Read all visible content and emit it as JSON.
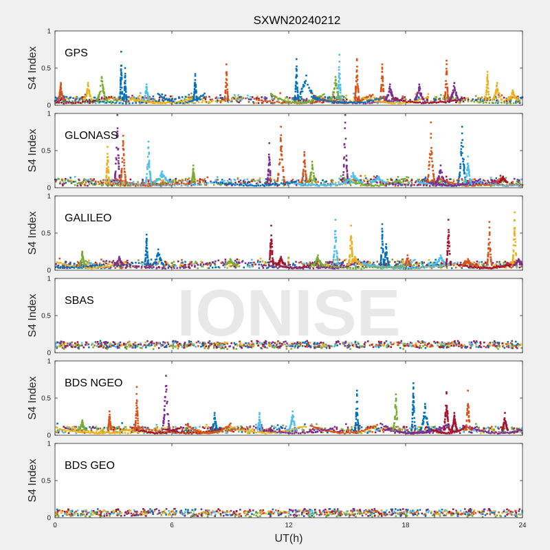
{
  "chart_data": {
    "type": "scatter",
    "title": "SXWN20240212",
    "xlabel": "UT(h)",
    "ylabel": "S4 Index",
    "xlim": [
      0,
      24
    ],
    "ylim": [
      0,
      1
    ],
    "xticks": [
      0,
      6,
      12,
      18,
      24
    ],
    "xtick_labels": [
      "0",
      "6",
      "12",
      "18",
      "24"
    ],
    "yticks": [
      0,
      0.5,
      1
    ],
    "ytick_labels": [
      "0",
      "0.5",
      "1"
    ],
    "grid": false,
    "watermark": "IONISE",
    "series_colors": [
      "#0072BD",
      "#D95319",
      "#EDB120",
      "#7E2F8E",
      "#77AC30",
      "#4DBEEE",
      "#A2142F"
    ],
    "panels": [
      {
        "label": "GPS",
        "baseline": 0.07,
        "spikes": [
          {
            "x": 0.3,
            "peak": 0.3,
            "width": 0.3,
            "color": 1
          },
          {
            "x": 1.7,
            "peak": 0.3,
            "width": 0.4,
            "color": 2
          },
          {
            "x": 2.4,
            "peak": 0.38,
            "width": 0.5,
            "color": 4
          },
          {
            "x": 3.4,
            "peak": 0.72,
            "width": 0.15,
            "color": 0
          },
          {
            "x": 3.6,
            "peak": 0.5,
            "width": 0.15,
            "color": 0
          },
          {
            "x": 4.7,
            "peak": 0.28,
            "width": 0.3,
            "color": 5
          },
          {
            "x": 7.2,
            "peak": 0.42,
            "width": 0.2,
            "color": 0
          },
          {
            "x": 8.8,
            "peak": 0.55,
            "width": 0.2,
            "color": 1
          },
          {
            "x": 12.4,
            "peak": 0.62,
            "width": 0.2,
            "color": 0
          },
          {
            "x": 12.9,
            "peak": 0.4,
            "width": 1.2,
            "color": 0
          },
          {
            "x": 14.6,
            "peak": 0.68,
            "width": 0.2,
            "color": 5
          },
          {
            "x": 14.4,
            "peak": 0.38,
            "width": 0.5,
            "color": 4
          },
          {
            "x": 15.5,
            "peak": 0.62,
            "width": 0.25,
            "color": 1
          },
          {
            "x": 16.8,
            "peak": 0.55,
            "width": 0.25,
            "color": 1
          },
          {
            "x": 17.2,
            "peak": 0.28,
            "width": 0.5,
            "color": 3
          },
          {
            "x": 18.7,
            "peak": 0.28,
            "width": 0.5,
            "color": 3
          },
          {
            "x": 20.1,
            "peak": 0.6,
            "width": 0.2,
            "color": 1
          },
          {
            "x": 20.5,
            "peak": 0.3,
            "width": 0.5,
            "color": 3
          },
          {
            "x": 22.2,
            "peak": 0.45,
            "width": 0.2,
            "color": 2
          },
          {
            "x": 22.7,
            "peak": 0.3,
            "width": 0.5,
            "color": 2
          },
          {
            "x": 23.5,
            "peak": 0.2,
            "width": 0.5,
            "color": 2
          }
        ]
      },
      {
        "label": "GLONASS",
        "baseline": 0.07,
        "spikes": [
          {
            "x": 2.7,
            "peak": 0.55,
            "width": 0.2,
            "color": 2
          },
          {
            "x": 3.2,
            "peak": 0.98,
            "width": 0.3,
            "color": 3
          },
          {
            "x": 3.5,
            "peak": 0.7,
            "width": 0.3,
            "color": 1
          },
          {
            "x": 4.8,
            "peak": 0.62,
            "width": 0.3,
            "color": 5
          },
          {
            "x": 5.5,
            "peak": 0.22,
            "width": 0.9,
            "color": 5
          },
          {
            "x": 7.1,
            "peak": 0.3,
            "width": 0.2,
            "color": 4
          },
          {
            "x": 11.0,
            "peak": 0.6,
            "width": 0.2,
            "color": 3
          },
          {
            "x": 11.6,
            "peak": 0.82,
            "width": 0.4,
            "color": 1
          },
          {
            "x": 12.8,
            "peak": 0.48,
            "width": 0.3,
            "color": 1
          },
          {
            "x": 13.2,
            "peak": 0.35,
            "width": 0.4,
            "color": 4
          },
          {
            "x": 14.9,
            "peak": 0.98,
            "width": 0.3,
            "color": 3
          },
          {
            "x": 15.3,
            "peak": 0.2,
            "width": 1.0,
            "color": 5
          },
          {
            "x": 16.6,
            "peak": 0.15,
            "width": 0.8,
            "color": 5
          },
          {
            "x": 19.3,
            "peak": 0.88,
            "width": 0.4,
            "color": 1
          },
          {
            "x": 19.8,
            "peak": 0.3,
            "width": 0.5,
            "color": 3
          },
          {
            "x": 20.9,
            "peak": 0.82,
            "width": 0.4,
            "color": 0
          },
          {
            "x": 21.2,
            "peak": 0.42,
            "width": 0.3,
            "color": 5
          },
          {
            "x": 23.0,
            "peak": 0.15,
            "width": 0.5,
            "color": 6
          }
        ]
      },
      {
        "label": "GALILEO",
        "baseline": 0.07,
        "spikes": [
          {
            "x": 1.4,
            "peak": 0.25,
            "width": 0.3,
            "color": 4
          },
          {
            "x": 3.3,
            "peak": 0.18,
            "width": 0.5,
            "color": 3
          },
          {
            "x": 4.7,
            "peak": 0.48,
            "width": 0.2,
            "color": 0
          },
          {
            "x": 5.3,
            "peak": 0.28,
            "width": 0.6,
            "color": 0
          },
          {
            "x": 9.0,
            "peak": 0.15,
            "width": 0.6,
            "color": 4
          },
          {
            "x": 11.1,
            "peak": 0.6,
            "width": 0.25,
            "color": 6
          },
          {
            "x": 11.6,
            "peak": 0.18,
            "width": 0.5,
            "color": 6
          },
          {
            "x": 13.5,
            "peak": 0.2,
            "width": 0.5,
            "color": 4
          },
          {
            "x": 14.4,
            "peak": 0.68,
            "width": 0.3,
            "color": 5
          },
          {
            "x": 15.2,
            "peak": 0.6,
            "width": 0.25,
            "color": 2
          },
          {
            "x": 15.4,
            "peak": 0.18,
            "width": 0.8,
            "color": 2
          },
          {
            "x": 16.8,
            "peak": 0.62,
            "width": 0.2,
            "color": 0
          },
          {
            "x": 17.0,
            "peak": 0.35,
            "width": 0.3,
            "color": 0
          },
          {
            "x": 18.1,
            "peak": 0.2,
            "width": 0.3,
            "color": 1
          },
          {
            "x": 19.8,
            "peak": 0.2,
            "width": 0.8,
            "color": 5
          },
          {
            "x": 20.2,
            "peak": 0.68,
            "width": 0.25,
            "color": 6
          },
          {
            "x": 21.2,
            "peak": 0.15,
            "width": 0.6,
            "color": 1
          },
          {
            "x": 22.3,
            "peak": 0.65,
            "width": 0.25,
            "color": 1
          },
          {
            "x": 23.6,
            "peak": 0.78,
            "width": 0.25,
            "color": 2
          },
          {
            "x": 23.8,
            "peak": 0.15,
            "width": 0.5,
            "color": 3
          }
        ]
      },
      {
        "label": "SBAS",
        "baseline": 0.11,
        "spikes": []
      },
      {
        "label": "BDS NGEO",
        "baseline": 0.07,
        "spikes": [
          {
            "x": 1.4,
            "peak": 0.2,
            "width": 0.4,
            "color": 4
          },
          {
            "x": 2.8,
            "peak": 0.32,
            "width": 0.2,
            "color": 1
          },
          {
            "x": 4.2,
            "peak": 0.65,
            "width": 0.2,
            "color": 1
          },
          {
            "x": 5.7,
            "peak": 0.8,
            "width": 0.4,
            "color": 3
          },
          {
            "x": 8.2,
            "peak": 0.3,
            "width": 0.3,
            "color": 0
          },
          {
            "x": 10.5,
            "peak": 0.3,
            "width": 0.2,
            "color": 5
          },
          {
            "x": 12.2,
            "peak": 0.32,
            "width": 0.4,
            "color": 5
          },
          {
            "x": 15.5,
            "peak": 0.6,
            "width": 0.2,
            "color": 0
          },
          {
            "x": 17.5,
            "peak": 0.55,
            "width": 0.3,
            "color": 4
          },
          {
            "x": 18.4,
            "peak": 0.7,
            "width": 0.2,
            "color": 0
          },
          {
            "x": 19.0,
            "peak": 0.42,
            "width": 0.5,
            "color": 0
          },
          {
            "x": 20.1,
            "peak": 0.58,
            "width": 0.3,
            "color": 6
          },
          {
            "x": 20.5,
            "peak": 0.3,
            "width": 0.3,
            "color": 6
          },
          {
            "x": 21.2,
            "peak": 0.6,
            "width": 0.25,
            "color": 1
          },
          {
            "x": 23.1,
            "peak": 0.3,
            "width": 0.3,
            "color": 6
          }
        ]
      },
      {
        "label": "BDS GEO",
        "baseline": 0.07,
        "spikes": []
      }
    ]
  }
}
